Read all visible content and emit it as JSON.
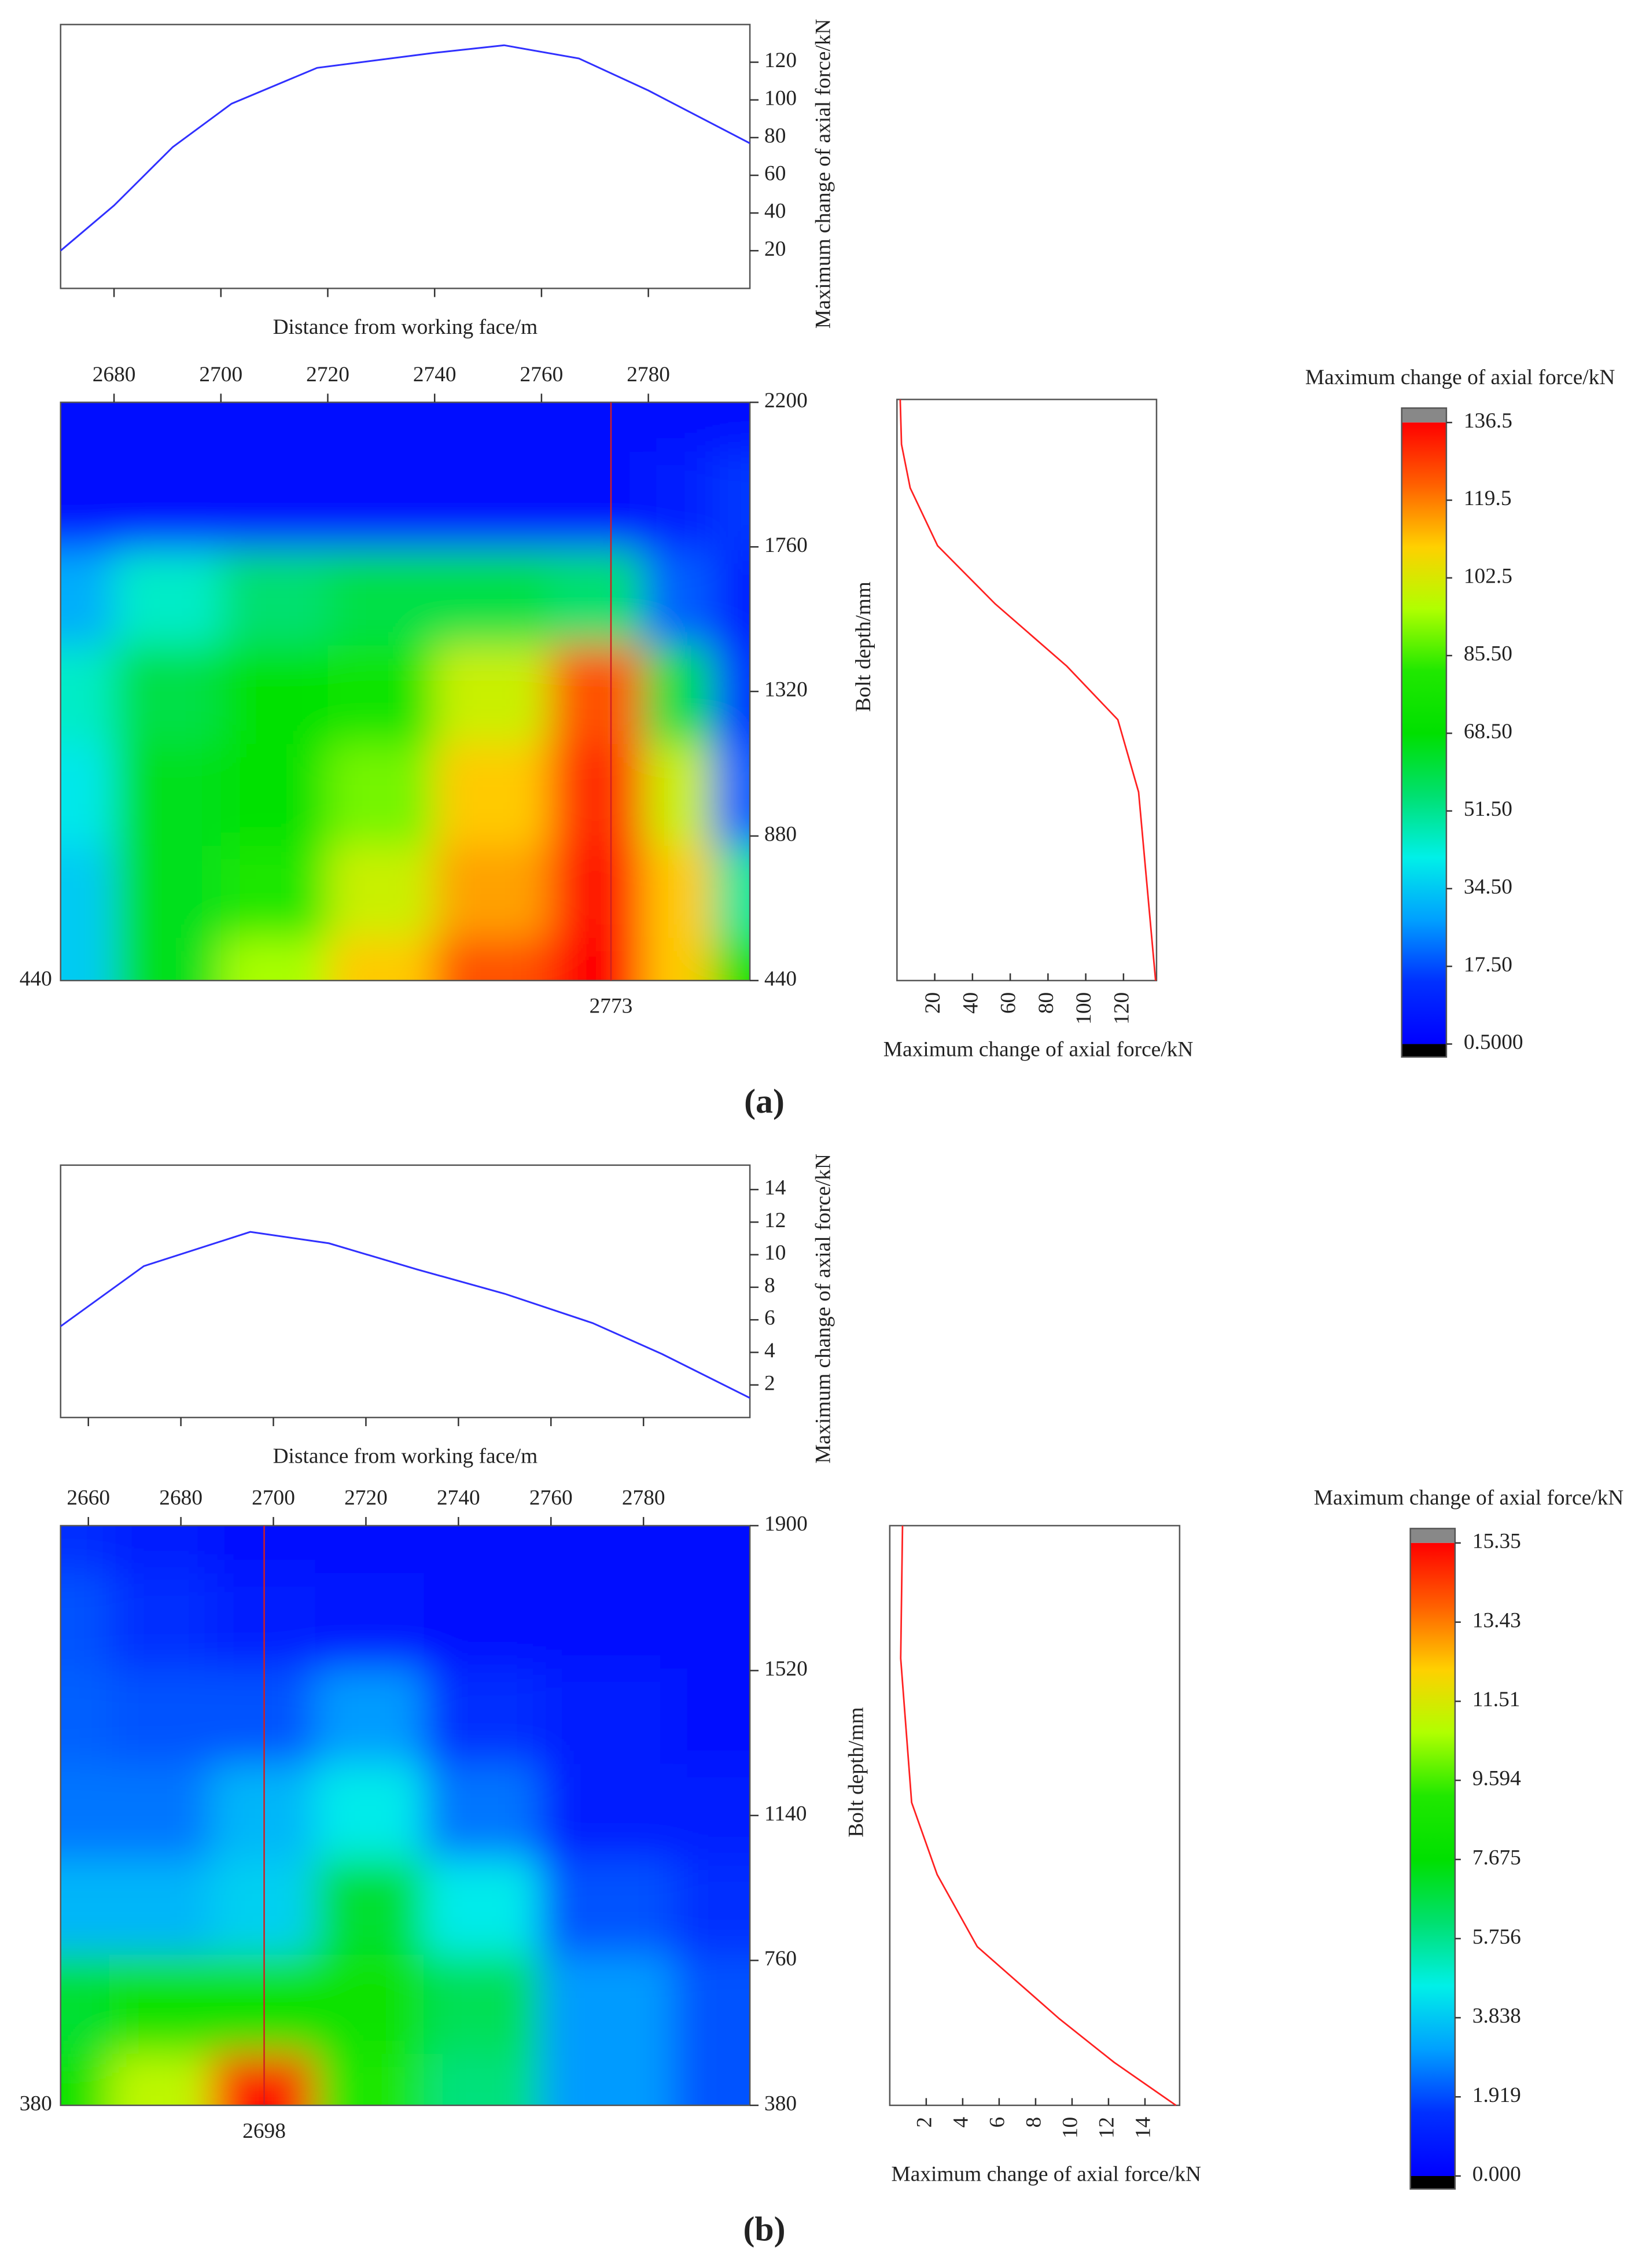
{
  "panel_labels": [
    "(a)",
    "(b)"
  ],
  "chart_data": [
    {
      "type": "line",
      "xlabel": "Distance from working face/m",
      "ylabel": "Maximum change of axial force/kN",
      "x": [
        2670,
        2680,
        2691,
        2702,
        2718,
        2740,
        2753,
        2767,
        2780,
        2799
      ],
      "values": [
        20,
        44,
        75,
        98,
        117,
        125,
        129,
        122,
        105,
        77
      ],
      "color": "#3030ff",
      "xlim": [
        2670,
        2799
      ],
      "ylim": [
        0,
        140
      ],
      "yticks": [
        20,
        40,
        60,
        80,
        100,
        120
      ]
    },
    {
      "type": "contour",
      "x": [
        2670,
        2690,
        2710,
        2730,
        2750,
        2773,
        2785,
        2799
      ],
      "y": [
        2200,
        1900,
        1600,
        1320,
        1000,
        700,
        440
      ],
      "z": [
        [
          3,
          3,
          3,
          3,
          3,
          3,
          3,
          5
        ],
        [
          5,
          5,
          5,
          5,
          5,
          5,
          8,
          15
        ],
        [
          30,
          45,
          55,
          60,
          60,
          55,
          20,
          10
        ],
        [
          45,
          60,
          70,
          75,
          100,
          125,
          60,
          15
        ],
        [
          40,
          65,
          70,
          90,
          110,
          130,
          100,
          20
        ],
        [
          35,
          65,
          80,
          100,
          115,
          133,
          110,
          50
        ],
        [
          35,
          65,
          95,
          110,
          125,
          136,
          110,
          70
        ]
      ],
      "xlim": [
        2670,
        2799
      ],
      "ylim": [
        440,
        2200
      ],
      "xticks": [
        2680,
        2700,
        2720,
        2740,
        2760,
        2780
      ],
      "yticks": [
        440,
        880,
        1320,
        1760,
        2200
      ],
      "marker": 2773,
      "marker_color": "#d02020"
    },
    {
      "type": "profile",
      "xlabel": "Maximum change of axial force/kN",
      "ylabel": "Bolt depth/mm",
      "values": [
        1.7,
        2.4,
        7,
        21.5,
        52,
        90,
        117,
        128,
        137
      ],
      "depth": [
        2200,
        2064,
        1932,
        1757,
        1581,
        1392,
        1230,
        1011,
        440
      ],
      "color": "#ff2020",
      "xlim": [
        0,
        137.5
      ],
      "xticks": [
        20,
        40,
        60,
        80,
        100,
        120
      ],
      "ylim": [
        440,
        2200
      ]
    },
    {
      "type": "colorbar",
      "title": "Maximum change of axial force/kN",
      "zlim": [
        0.5,
        136.5
      ],
      "ticks": [
        136.5,
        119.5,
        102.5,
        {
          "value": 85.5,
          "label": "85.50"
        },
        {
          "value": 68.5,
          "label": "68.50"
        },
        {
          "value": 51.5,
          "label": "51.50"
        },
        {
          "value": 34.5,
          "label": "34.50"
        },
        {
          "value": 17.5,
          "label": "17.50"
        },
        {
          "value": 0.5,
          "label": "0.5000"
        }
      ],
      "colors": [
        "#0000ff",
        "#0030ff",
        "#00a0ff",
        "#00f0e8",
        "#00e070",
        "#00e000",
        "#20e800",
        "#b0ff00",
        "#ffd000",
        "#ff6000",
        "#ff0000"
      ]
    },
    {
      "type": "line",
      "xlabel": "Distance from working face/m",
      "ylabel": "Maximum change of axial force/kN",
      "x": [
        2654,
        2672,
        2695,
        2712,
        2731,
        2750,
        2769,
        2784,
        2803
      ],
      "values": [
        5.6,
        9.3,
        11.4,
        10.7,
        9.1,
        7.6,
        5.8,
        3.9,
        1.2
      ],
      "color": "#3030ff",
      "xlim": [
        2654,
        2803
      ],
      "ylim": [
        0,
        15.5
      ],
      "yticks": [
        2,
        4,
        6,
        8,
        10,
        12,
        14
      ]
    },
    {
      "type": "contour",
      "x": [
        2654,
        2675,
        2698,
        2720,
        2745,
        2770,
        2803
      ],
      "y": [
        1900,
        1650,
        1400,
        1150,
        900,
        650,
        380
      ],
      "z": [
        [
          1.5,
          1,
          0.5,
          0.5,
          0.5,
          0.5,
          0.5
        ],
        [
          2,
          1.5,
          1,
          0.8,
          0.5,
          0.5,
          0.5
        ],
        [
          2.2,
          2,
          2,
          3,
          1.5,
          1,
          0.5
        ],
        [
          2.5,
          2.5,
          3.5,
          4.5,
          2.5,
          1,
          1
        ],
        [
          3.5,
          3.5,
          4,
          7,
          4.5,
          2,
          1.5
        ],
        [
          7,
          8,
          8,
          8,
          6.5,
          3,
          2
        ],
        [
          8,
          11,
          15,
          9,
          6,
          3,
          2
        ]
      ],
      "xlim": [
        2654,
        2803
      ],
      "ylim": [
        380,
        1900
      ],
      "xticks": [
        2660,
        2680,
        2700,
        2720,
        2740,
        2760,
        2780
      ],
      "yticks": [
        380,
        760,
        1140,
        1520,
        1900
      ],
      "marker": 2698,
      "marker_color": "#d02020"
    },
    {
      "type": "profile",
      "xlabel": "Maximum change of axial force/kN",
      "ylabel": "Bolt depth/mm",
      "values": [
        0.7,
        0.6,
        1.2,
        2.6,
        4.8,
        9.3,
        12.3,
        15.7
      ],
      "depth": [
        1900,
        1552,
        1174,
        985,
        796,
        607,
        493,
        380
      ],
      "color": "#ff2020",
      "xlim": [
        0,
        15.9
      ],
      "xticks": [
        2,
        4,
        6,
        8,
        10,
        12,
        14
      ],
      "ylim": [
        380,
        1900
      ]
    },
    {
      "type": "colorbar",
      "title": "Maximum change of axial force/kN",
      "zlim": [
        0,
        15.35
      ],
      "ticks": [
        15.35,
        13.43,
        11.51,
        9.594,
        7.675,
        5.756,
        3.838,
        1.919,
        {
          "value": 0,
          "label": "0.000"
        }
      ],
      "colors": [
        "#0000ff",
        "#0030ff",
        "#00a0ff",
        "#00f0e8",
        "#00e070",
        "#00e000",
        "#20e800",
        "#b0ff00",
        "#ffd000",
        "#ff6000",
        "#ff0000"
      ]
    }
  ]
}
